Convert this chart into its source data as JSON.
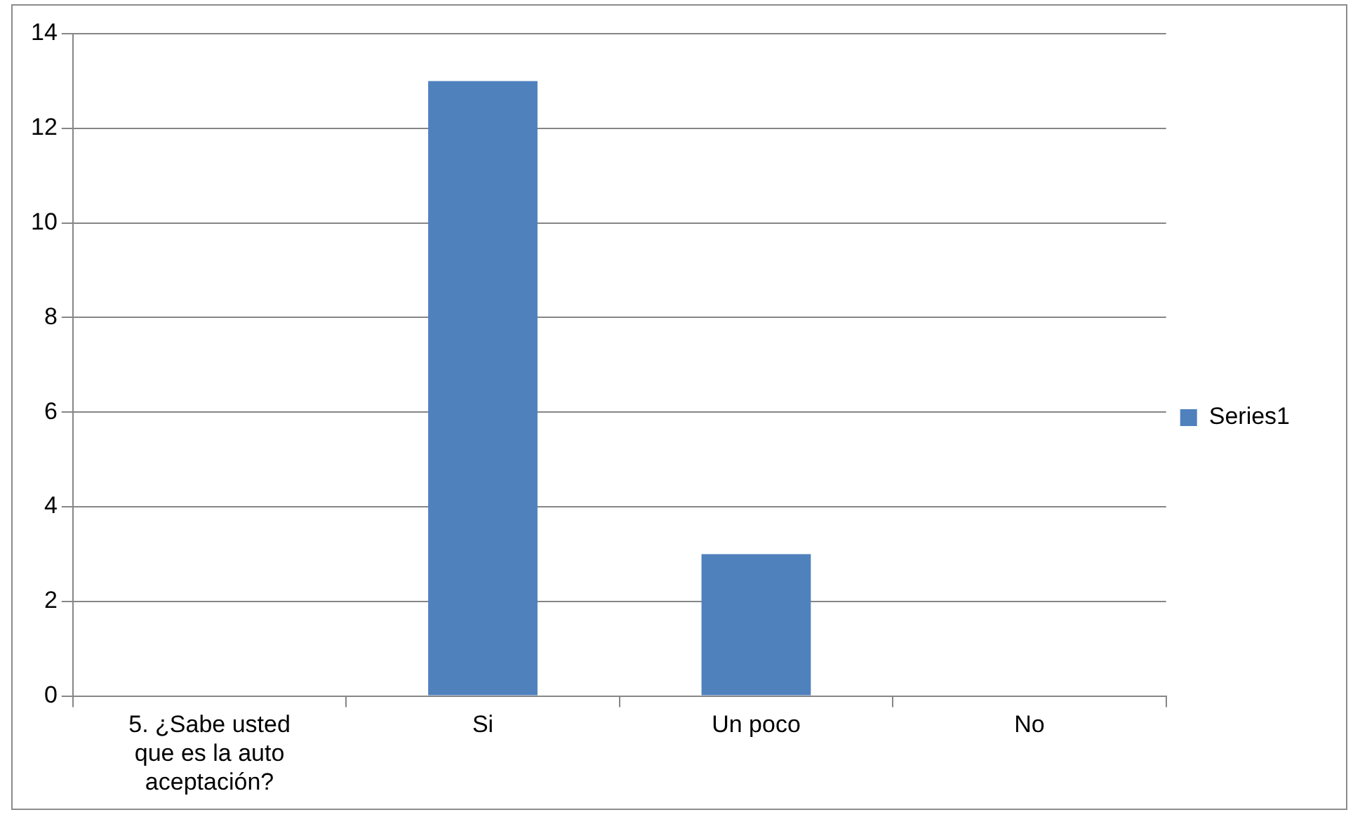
{
  "chart_data": {
    "type": "bar",
    "categories": [
      "5. ¿Sabe usted que es la auto aceptación?",
      "Si",
      "Un poco",
      "No"
    ],
    "series": [
      {
        "name": "Series1",
        "color": "#4f81bd",
        "values": [
          null,
          13,
          3,
          0
        ]
      }
    ],
    "ylim": [
      0,
      14
    ],
    "yticks": [
      0,
      2,
      4,
      6,
      8,
      10,
      12,
      14
    ],
    "grid": "y",
    "legend": "right"
  }
}
